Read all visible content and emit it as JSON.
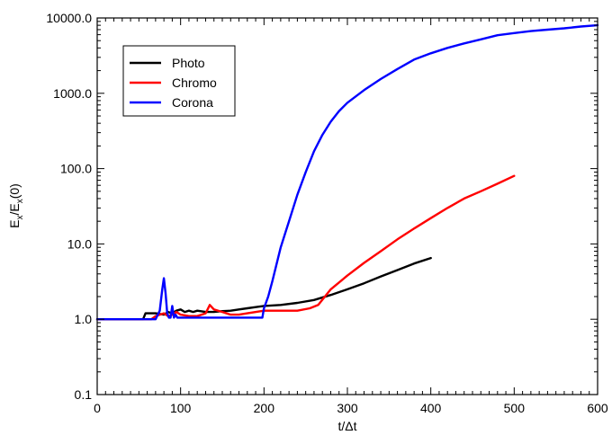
{
  "chart_data": {
    "type": "line",
    "xlabel": "t/Δt",
    "ylabel": {
      "main": "E",
      "sub": "x",
      "mid": "/E",
      "sub2": "x",
      "tail": "(0)"
    },
    "xlim": [
      0,
      600
    ],
    "ylim": [
      0.1,
      10000
    ],
    "yscale": "log",
    "xticks": [
      0,
      100,
      200,
      300,
      400,
      500,
      600
    ],
    "xtick_labels": [
      "0",
      "100",
      "200",
      "300",
      "400",
      "500",
      "600"
    ],
    "yticks": [
      0.1,
      1,
      10,
      100,
      1000,
      10000
    ],
    "ytick_labels": [
      "0.1",
      "1.0",
      "10.0",
      "100.0",
      "1000.0",
      "10000.0"
    ],
    "legend_position": "top-left",
    "grid": false,
    "series": [
      {
        "name": "Photo",
        "color": "#000000",
        "x": [
          0,
          55,
          58,
          70,
          80,
          85,
          90,
          95,
          100,
          105,
          110,
          115,
          120,
          130,
          140,
          150,
          160,
          170,
          180,
          190,
          200,
          220,
          240,
          260,
          280,
          300,
          320,
          340,
          360,
          380,
          400
        ],
        "y": [
          1.0,
          1.0,
          1.2,
          1.2,
          1.15,
          1.25,
          1.2,
          1.3,
          1.35,
          1.25,
          1.3,
          1.25,
          1.3,
          1.25,
          1.25,
          1.28,
          1.3,
          1.35,
          1.4,
          1.45,
          1.5,
          1.55,
          1.65,
          1.8,
          2.1,
          2.5,
          3.0,
          3.7,
          4.5,
          5.5,
          6.5
        ]
      },
      {
        "name": "Chromo",
        "color": "#ff0000",
        "x": [
          0,
          65,
          70,
          75,
          80,
          85,
          90,
          95,
          100,
          110,
          120,
          130,
          135,
          140,
          150,
          160,
          170,
          180,
          200,
          220,
          240,
          255,
          265,
          280,
          300,
          320,
          340,
          360,
          380,
          400,
          420,
          440,
          460,
          480,
          500
        ],
        "y": [
          1.0,
          1.0,
          1.1,
          1.15,
          1.2,
          1.1,
          1.15,
          1.25,
          1.15,
          1.1,
          1.1,
          1.2,
          1.55,
          1.35,
          1.25,
          1.15,
          1.15,
          1.2,
          1.3,
          1.3,
          1.3,
          1.4,
          1.55,
          2.5,
          3.8,
          5.6,
          8.0,
          11.5,
          16.0,
          22.0,
          30.0,
          40.0,
          50.0,
          63.0,
          80.0
        ]
      },
      {
        "name": "Corona",
        "color": "#0000ff",
        "x": [
          0,
          70,
          75,
          78,
          80,
          82,
          84,
          86,
          88,
          90,
          92,
          94,
          96,
          100,
          150,
          198,
          200,
          205,
          210,
          220,
          230,
          240,
          250,
          260,
          270,
          280,
          290,
          300,
          320,
          340,
          360,
          380,
          400,
          420,
          440,
          460,
          480,
          500,
          520,
          540,
          560,
          580,
          600
        ],
        "y": [
          1.0,
          1.0,
          1.3,
          2.5,
          3.5,
          2.2,
          1.2,
          1.05,
          1.05,
          1.5,
          1.05,
          1.15,
          1.05,
          1.05,
          1.05,
          1.05,
          1.4,
          2.0,
          3.2,
          9.0,
          20.0,
          45.0,
          90.0,
          170.0,
          280.0,
          420.0,
          580.0,
          750.0,
          1100.0,
          1550.0,
          2100.0,
          2800.0,
          3400.0,
          4000.0,
          4600.0,
          5200.0,
          5900.0,
          6300.0,
          6700.0,
          7000.0,
          7300.0,
          7700.0,
          8000.0
        ]
      }
    ]
  }
}
